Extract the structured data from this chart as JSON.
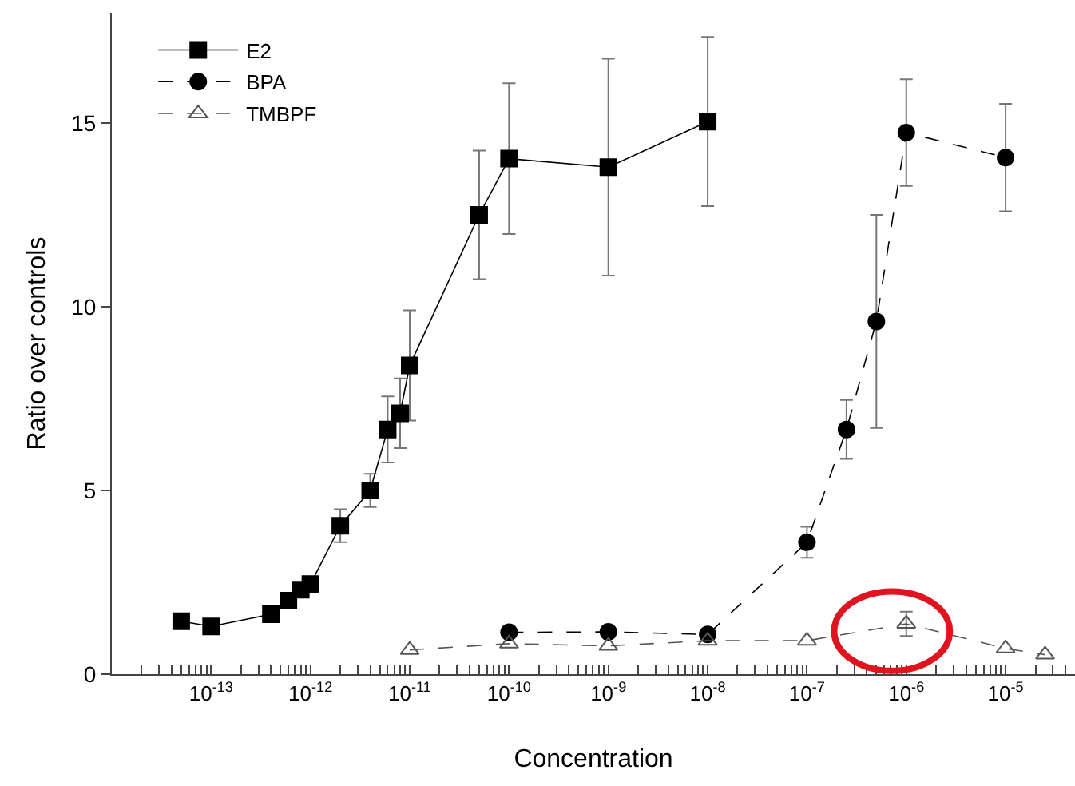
{
  "chart_data": {
    "type": "line",
    "xlabel": "Concentration",
    "ylabel": "Ratio over controls",
    "log": "x",
    "grid": false,
    "legend": "top left",
    "xlim": [
      1e-14,
      5e-05
    ],
    "ylim": [
      0,
      18
    ],
    "yticks": [
      0,
      5,
      10,
      15
    ],
    "xticks": [
      {
        "value": 2e-14,
        "label": null
      },
      {
        "value": 3e-14,
        "label": null
      },
      {
        "value": 4e-14,
        "label": null
      },
      {
        "value": 5e-14,
        "label": null
      },
      {
        "value": 6e-14,
        "label": null
      },
      {
        "value": 7e-14,
        "label": null
      },
      {
        "value": 8e-14,
        "label": null
      },
      {
        "value": 9e-14,
        "label": null
      },
      {
        "value": 1e-13,
        "label": "10$^{-13}$"
      },
      {
        "value": 2e-13,
        "label": null
      },
      {
        "value": 3e-13,
        "label": null
      },
      {
        "value": 4e-13,
        "label": null
      },
      {
        "value": 5e-13,
        "label": null
      },
      {
        "value": 6e-13,
        "label": null
      },
      {
        "value": 7e-13,
        "label": null
      },
      {
        "value": 8e-13,
        "label": null
      },
      {
        "value": 9e-13,
        "label": null
      },
      {
        "value": 1e-12,
        "label": "10$^{-12}$"
      },
      {
        "value": 2e-12,
        "label": null
      },
      {
        "value": 3e-12,
        "label": null
      },
      {
        "value": 4e-12,
        "label": null
      },
      {
        "value": 5e-12,
        "label": null
      },
      {
        "value": 6e-12,
        "label": null
      },
      {
        "value": 7e-12,
        "label": null
      },
      {
        "value": 8e-12,
        "label": null
      },
      {
        "value": 9e-12,
        "label": null
      },
      {
        "value": 1e-11,
        "label": "10$^{-11}$"
      },
      {
        "value": 2e-11,
        "label": null
      },
      {
        "value": 3e-11,
        "label": null
      },
      {
        "value": 4e-11,
        "label": null
      },
      {
        "value": 5e-11,
        "label": null
      },
      {
        "value": 6e-11,
        "label": null
      },
      {
        "value": 7e-11,
        "label": null
      },
      {
        "value": 8e-11,
        "label": null
      },
      {
        "value": 9e-11,
        "label": null
      },
      {
        "value": 1e-10,
        "label": "10$^{-10}$"
      },
      {
        "value": 2e-10,
        "label": null
      },
      {
        "value": 3e-10,
        "label": null
      },
      {
        "value": 4e-10,
        "label": null
      },
      {
        "value": 5e-10,
        "label": null
      },
      {
        "value": 6e-10,
        "label": null
      },
      {
        "value": 7e-10,
        "label": null
      },
      {
        "value": 8e-10,
        "label": null
      },
      {
        "value": 9e-10,
        "label": null
      },
      {
        "value": 1e-09,
        "label": "10$^{-9}$"
      },
      {
        "value": 2e-09,
        "label": null
      },
      {
        "value": 3e-09,
        "label": null
      },
      {
        "value": 4e-09,
        "label": null
      },
      {
        "value": 5e-09,
        "label": null
      },
      {
        "value": 6e-09,
        "label": null
      },
      {
        "value": 7e-09,
        "label": null
      },
      {
        "value": 8e-09,
        "label": null
      },
      {
        "value": 9e-09,
        "label": null
      },
      {
        "value": 1e-08,
        "label": "10$^{-8}$"
      },
      {
        "value": 2e-08,
        "label": null
      },
      {
        "value": 3e-08,
        "label": null
      },
      {
        "value": 4e-08,
        "label": null
      },
      {
        "value": 5e-08,
        "label": null
      },
      {
        "value": 6e-08,
        "label": null
      },
      {
        "value": 7e-08,
        "label": null
      },
      {
        "value": 8e-08,
        "label": null
      },
      {
        "value": 9e-08,
        "label": null
      },
      {
        "value": 1e-07,
        "label": "10$^{-7}$"
      },
      {
        "value": 2e-07,
        "label": null
      },
      {
        "value": 3e-07,
        "label": null
      },
      {
        "value": 4e-07,
        "label": null
      },
      {
        "value": 5e-07,
        "label": null
      },
      {
        "value": 6e-07,
        "label": null
      },
      {
        "value": 7e-07,
        "label": null
      },
      {
        "value": 8e-07,
        "label": null
      },
      {
        "value": 9e-07,
        "label": null
      },
      {
        "value": 1e-06,
        "label": "10$^{-6}$"
      },
      {
        "value": 2e-06,
        "label": null
      },
      {
        "value": 3e-06,
        "label": null
      },
      {
        "value": 4e-06,
        "label": null
      },
      {
        "value": 5e-06,
        "label": null
      },
      {
        "value": 6e-06,
        "label": null
      },
      {
        "value": 7e-06,
        "label": null
      },
      {
        "value": 8e-06,
        "label": null
      },
      {
        "value": 9e-06,
        "label": null
      },
      {
        "value": 1e-05,
        "label": "10$^{-5}$"
      },
      {
        "value": 2e-05,
        "label": null
      },
      {
        "value": 3e-05,
        "label": null
      },
      {
        "value": 4e-05,
        "label": null
      }
    ],
    "series": [
      {
        "name": "E2",
        "color": "#000000",
        "marker": "square",
        "line_style": "solid",
        "x": [
          5e-14,
          1e-13,
          4e-13,
          6e-13,
          8e-13,
          1e-12,
          2e-12,
          4e-12,
          6e-12,
          8e-12,
          1e-11,
          5e-11,
          1e-10,
          1e-09,
          1e-08
        ],
        "values": [
          1.44,
          1.3,
          1.63,
          2.0,
          2.3,
          2.45,
          4.04,
          5.0,
          6.66,
          7.1,
          8.4,
          12.5,
          14.03,
          13.8,
          15.04
        ],
        "errors": [
          null,
          null,
          null,
          null,
          null,
          null,
          0.45,
          0.45,
          0.9,
          0.95,
          1.5,
          1.75,
          2.05,
          2.95,
          2.3
        ]
      },
      {
        "name": "BPA",
        "color": "#000000",
        "marker": "circle",
        "line_style": "dashed",
        "x": [
          1e-10,
          1e-09,
          1e-08,
          1e-07,
          2.5e-07,
          5e-07,
          1e-06,
          1e-05
        ],
        "values": [
          1.14,
          1.15,
          1.08,
          3.59,
          6.66,
          9.6,
          14.74,
          14.06
        ],
        "errors": [
          null,
          null,
          null,
          0.42,
          0.8,
          2.9,
          1.45,
          1.46
        ]
      },
      {
        "name": "TMBPF",
        "color": "#555555",
        "marker": "triangle",
        "line_style": "dashed",
        "x": [
          1e-11,
          1e-10,
          1e-09,
          1e-08,
          1e-07,
          1e-06,
          1e-05,
          2.5e-05
        ],
        "values": [
          0.66,
          0.83,
          0.77,
          0.91,
          0.91,
          1.37,
          0.7,
          0.53
        ],
        "errors": [
          null,
          null,
          null,
          null,
          null,
          0.33,
          null,
          null
        ]
      }
    ]
  }
}
